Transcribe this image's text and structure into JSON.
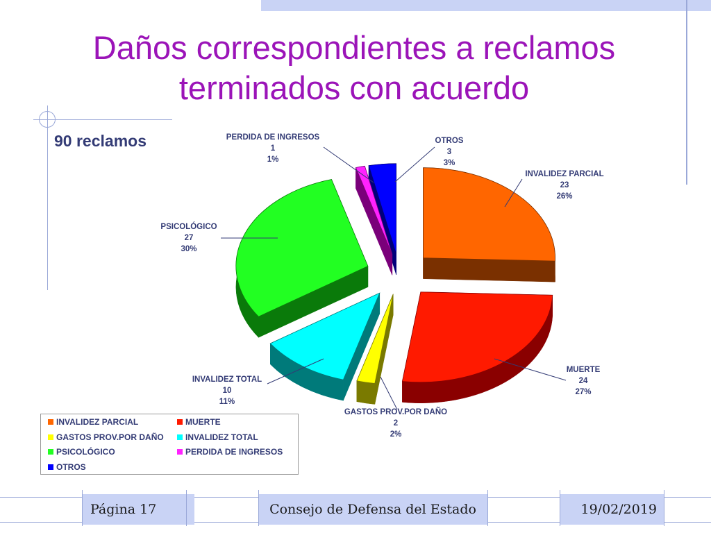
{
  "slide": {
    "title_line1": "Daños correspondientes a reclamos",
    "title_line2": "terminados con acuerdo",
    "subtitle": "90 reclamos"
  },
  "chart_data": {
    "type": "pie",
    "title": "",
    "slices": [
      {
        "name": "INVALIDEZ PARCIAL",
        "count_label": "23",
        "pct_label": "26%",
        "value": 23,
        "color": "#ff6600",
        "dark": "#7a3000"
      },
      {
        "name": "MUERTE",
        "count_label": "24",
        "pct_label": "27%",
        "value": 24,
        "color": "#ff1a00",
        "dark": "#8a0000"
      },
      {
        "name": "GASTOS PROV.POR DAÑO",
        "count_label": "2",
        "pct_label": "2%",
        "value": 2,
        "color": "#ffff00",
        "dark": "#7a7a00"
      },
      {
        "name": "INVALIDEZ TOTAL",
        "count_label": "10",
        "pct_label": "11%",
        "value": 10,
        "color": "#00ffff",
        "dark": "#007a7a"
      },
      {
        "name": "PSICOLÓGICO",
        "count_label": "27",
        "pct_label": "30%",
        "value": 27,
        "color": "#22ff22",
        "dark": "#0a7a0a"
      },
      {
        "name": "PERDIDA DE INGRESOS",
        "count_label": "1",
        "pct_label": "1%",
        "value": 1,
        "color": "#ff22ff",
        "dark": "#7a007a"
      },
      {
        "name": "OTROS",
        "count_label": "3",
        "pct_label": "3%",
        "value": 3,
        "color": "#0000ff",
        "dark": "#00007a"
      }
    ],
    "legend_placement": "bottom-left"
  },
  "footer": {
    "page": "Página 17",
    "org": "Consejo de Defensa del Estado",
    "date": "19/02/2019"
  }
}
